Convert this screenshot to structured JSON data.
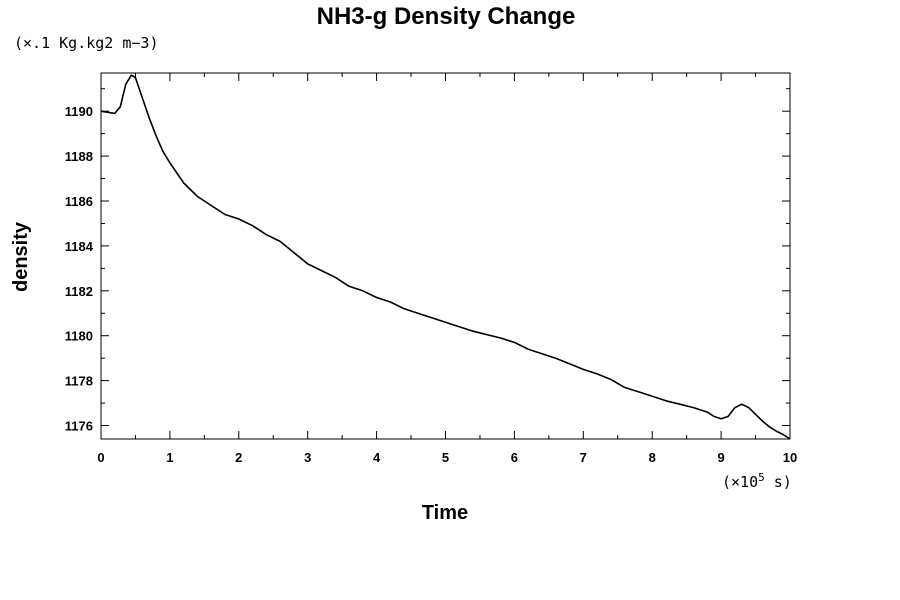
{
  "chart_data": {
    "type": "line",
    "title": "NH3-g Density Change",
    "ylabel": "density",
    "xlabel": "Time",
    "y_unit": "(×.1 Kg.kg2 m−3)",
    "x_unit_prefix": "(×10",
    "x_unit_exp": "5",
    "x_unit_suffix": " s)",
    "xlim": [
      0,
      10
    ],
    "ylim": [
      1175.4,
      1191.7
    ],
    "x_ticks": [
      0,
      1,
      2,
      3,
      4,
      5,
      6,
      7,
      8,
      9,
      10
    ],
    "y_ticks": [
      1176,
      1178,
      1180,
      1182,
      1184,
      1186,
      1188,
      1190
    ],
    "grid": false,
    "series": [
      {
        "color": "#000000",
        "x": [
          0,
          0.1,
          0.2,
          0.28,
          0.36,
          0.44,
          0.5,
          0.6,
          0.7,
          0.8,
          0.9,
          1.0,
          1.2,
          1.4,
          1.6,
          1.8,
          2.0,
          2.2,
          2.4,
          2.6,
          2.8,
          3.0,
          3.2,
          3.4,
          3.6,
          3.8,
          4.0,
          4.2,
          4.4,
          4.6,
          4.8,
          5.0,
          5.2,
          5.4,
          5.6,
          5.8,
          6.0,
          6.2,
          6.4,
          6.6,
          6.8,
          7.0,
          7.2,
          7.4,
          7.6,
          7.8,
          8.0,
          8.2,
          8.4,
          8.6,
          8.8,
          8.9,
          9.0,
          9.1,
          9.2,
          9.3,
          9.4,
          9.5,
          9.6,
          9.7,
          9.8,
          9.9,
          10.0
        ],
        "y": [
          1190.0,
          1189.95,
          1189.9,
          1190.2,
          1191.2,
          1191.6,
          1191.5,
          1190.6,
          1189.7,
          1188.9,
          1188.2,
          1187.7,
          1186.8,
          1186.2,
          1185.8,
          1185.4,
          1185.2,
          1184.9,
          1184.5,
          1184.2,
          1183.7,
          1183.2,
          1182.9,
          1182.6,
          1182.2,
          1182.0,
          1181.7,
          1181.5,
          1181.2,
          1181.0,
          1180.8,
          1180.6,
          1180.4,
          1180.2,
          1180.05,
          1179.9,
          1179.7,
          1179.4,
          1179.2,
          1179.0,
          1178.75,
          1178.5,
          1178.3,
          1178.05,
          1177.7,
          1177.5,
          1177.3,
          1177.1,
          1176.95,
          1176.8,
          1176.6,
          1176.4,
          1176.3,
          1176.4,
          1176.8,
          1176.95,
          1176.8,
          1176.5,
          1176.2,
          1175.95,
          1175.75,
          1175.6,
          1175.4
        ]
      }
    ]
  }
}
